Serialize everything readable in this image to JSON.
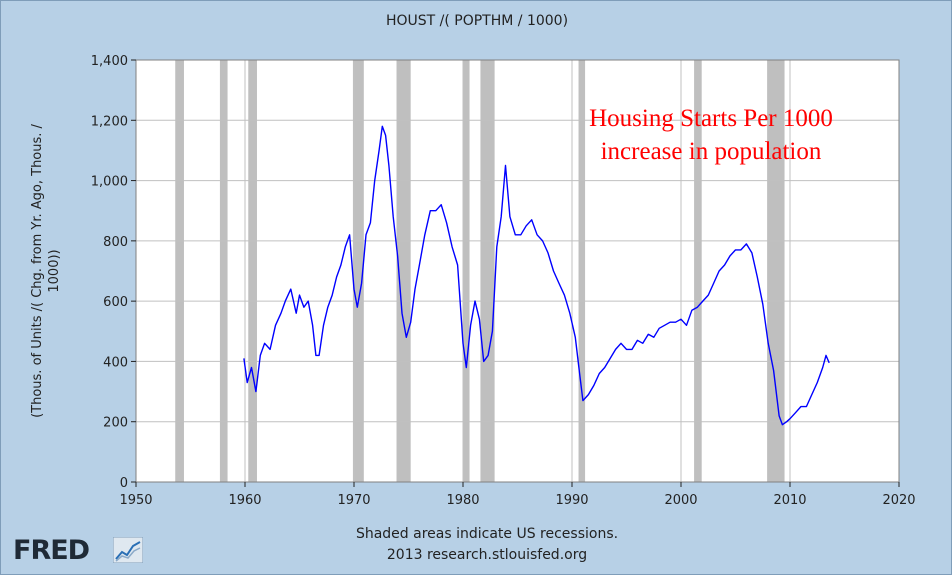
{
  "chart_data": {
    "type": "line",
    "title": "HOUST /( POPTHM / 1000)",
    "ylabel_lines": [
      "(Thous. of Units /( Chg. from Yr. Ago, Thous. /",
      "1000))"
    ],
    "xlabel": "",
    "xlim": [
      1950,
      2020
    ],
    "ylim": [
      0,
      1400
    ],
    "x_ticks": [
      1950,
      1960,
      1970,
      1980,
      1990,
      2000,
      2010,
      2020
    ],
    "x_tick_labels": [
      "1950",
      "1960",
      "1970",
      "1980",
      "1990",
      "2000",
      "2010",
      "2020"
    ],
    "y_ticks": [
      0,
      200,
      400,
      600,
      800,
      1000,
      1200,
      1400
    ],
    "y_tick_labels": [
      "0",
      "200",
      "400",
      "600",
      "800",
      "1,000",
      "1,200",
      "1,400"
    ],
    "grid": true,
    "line_color": "#0000ff",
    "recession_color": "#bfbfbf",
    "recessions": [
      [
        1953.6,
        1954.4
      ],
      [
        1957.7,
        1958.4
      ],
      [
        1960.3,
        1961.1
      ],
      [
        1969.9,
        1970.9
      ],
      [
        1973.9,
        1975.2
      ],
      [
        1980.0,
        1980.6
      ],
      [
        1981.6,
        1982.9
      ],
      [
        1990.6,
        1991.2
      ],
      [
        2001.2,
        2001.9
      ],
      [
        2007.9,
        2009.5
      ]
    ],
    "series": [
      {
        "name": "HOUST /( POPTHM / 1000)",
        "x": [
          1959.9,
          1960.2,
          1960.6,
          1961.0,
          1961.4,
          1961.8,
          1962.3,
          1962.8,
          1963.3,
          1963.7,
          1964.2,
          1964.7,
          1965.0,
          1965.4,
          1965.8,
          1966.2,
          1966.5,
          1966.8,
          1967.2,
          1967.6,
          1968.0,
          1968.4,
          1968.8,
          1969.2,
          1969.6,
          1970.0,
          1970.3,
          1970.7,
          1971.1,
          1971.5,
          1971.9,
          1972.3,
          1972.6,
          1972.9,
          1973.2,
          1973.6,
          1974.0,
          1974.4,
          1974.8,
          1975.2,
          1975.6,
          1976.0,
          1976.5,
          1977.0,
          1977.5,
          1978.0,
          1978.5,
          1979.0,
          1979.5,
          1980.0,
          1980.3,
          1980.7,
          1981.1,
          1981.5,
          1981.9,
          1982.3,
          1982.7,
          1983.1,
          1983.5,
          1983.9,
          1984.3,
          1984.8,
          1985.3,
          1985.8,
          1986.3,
          1986.8,
          1987.3,
          1987.8,
          1988.3,
          1988.8,
          1989.3,
          1989.8,
          1990.3,
          1990.7,
          1991.0,
          1991.5,
          1992.0,
          1992.5,
          1993.0,
          1993.5,
          1994.0,
          1994.5,
          1995.0,
          1995.5,
          1996.0,
          1996.5,
          1997.0,
          1997.5,
          1998.0,
          1998.5,
          1999.0,
          1999.5,
          2000.0,
          2000.5,
          2001.0,
          2001.5,
          2002.0,
          2002.5,
          2003.0,
          2003.5,
          2004.0,
          2004.5,
          2005.0,
          2005.5,
          2006.0,
          2006.5,
          2007.0,
          2007.5,
          2008.0,
          2008.5,
          2009.0,
          2009.3,
          2009.7,
          2010.0,
          2010.5,
          2011.0,
          2011.5,
          2012.0,
          2012.5,
          2013.0,
          2013.3,
          2013.6
        ],
        "y": [
          410,
          330,
          380,
          300,
          420,
          460,
          440,
          520,
          560,
          600,
          640,
          560,
          620,
          580,
          600,
          520,
          420,
          420,
          520,
          580,
          620,
          680,
          720,
          780,
          820,
          640,
          580,
          660,
          820,
          860,
          1000,
          1100,
          1180,
          1150,
          1050,
          880,
          750,
          560,
          480,
          530,
          640,
          720,
          820,
          900,
          900,
          920,
          860,
          780,
          720,
          460,
          380,
          520,
          600,
          540,
          400,
          420,
          500,
          780,
          880,
          1050,
          880,
          820,
          820,
          850,
          870,
          820,
          800,
          760,
          700,
          660,
          620,
          560,
          480,
          360,
          270,
          290,
          320,
          360,
          380,
          410,
          440,
          460,
          440,
          440,
          470,
          460,
          490,
          480,
          510,
          520,
          530,
          530,
          540,
          520,
          570,
          580,
          600,
          620,
          660,
          700,
          720,
          750,
          770,
          770,
          790,
          760,
          680,
          590,
          460,
          370,
          220,
          190,
          200,
          210,
          230,
          250,
          250,
          290,
          330,
          380,
          420,
          395
        ]
      }
    ],
    "annotation_lines": [
      "Housing Starts Per 1000",
      "increase in population"
    ]
  },
  "footer": {
    "note": "Shaded areas indicate US recessions.",
    "source": "2013 research.stlouisfed.org"
  },
  "logo": {
    "text": "FRED"
  }
}
